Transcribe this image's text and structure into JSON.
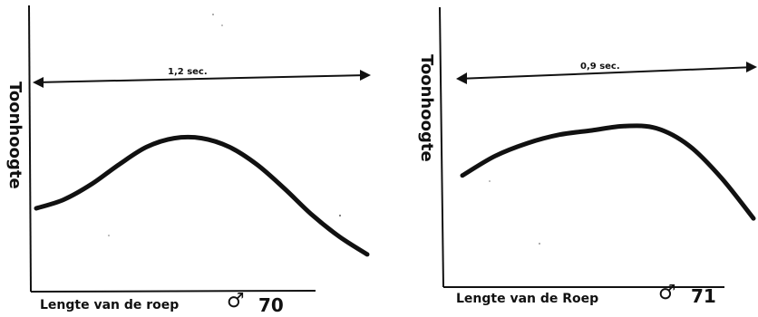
{
  "charts": [
    {
      "id": "70",
      "ylabel": "Toonhoogte",
      "xlabel": "Lengte van de roep",
      "sex_symbol": "♂",
      "number": "70",
      "duration_label": "1,2 sec."
    },
    {
      "id": "71",
      "ylabel": "Toonhoogte",
      "xlabel": "Lengte van de Roep",
      "sex_symbol": "♂",
      "number": "71",
      "duration_label": "0,9 sec."
    }
  ],
  "chart_data": [
    {
      "type": "line",
      "title": "",
      "xlabel": "Lengte van de roep",
      "ylabel": "Toonhoogte",
      "duration_label": "1,2 sec.",
      "x": [
        0,
        0.1,
        0.2,
        0.3,
        0.4,
        0.5,
        0.6,
        0.7,
        0.8,
        0.9,
        1.0,
        1.1,
        1.2
      ],
      "y": [
        0.38,
        0.42,
        0.49,
        0.58,
        0.66,
        0.7,
        0.7,
        0.66,
        0.58,
        0.47,
        0.35,
        0.25,
        0.17
      ],
      "xlim": [
        0,
        1.2
      ],
      "ylim": [
        0,
        1
      ],
      "grid": false
    },
    {
      "type": "line",
      "title": "",
      "xlabel": "Lengte van de Roep",
      "ylabel": "Toonhoogte",
      "duration_label": "0,9 sec.",
      "x": [
        0,
        0.1,
        0.2,
        0.3,
        0.4,
        0.5,
        0.6,
        0.7,
        0.8,
        0.9
      ],
      "y": [
        0.52,
        0.61,
        0.67,
        0.71,
        0.73,
        0.75,
        0.74,
        0.66,
        0.51,
        0.32
      ],
      "xlim": [
        0,
        0.9
      ],
      "ylim": [
        0,
        1
      ],
      "grid": false
    }
  ]
}
